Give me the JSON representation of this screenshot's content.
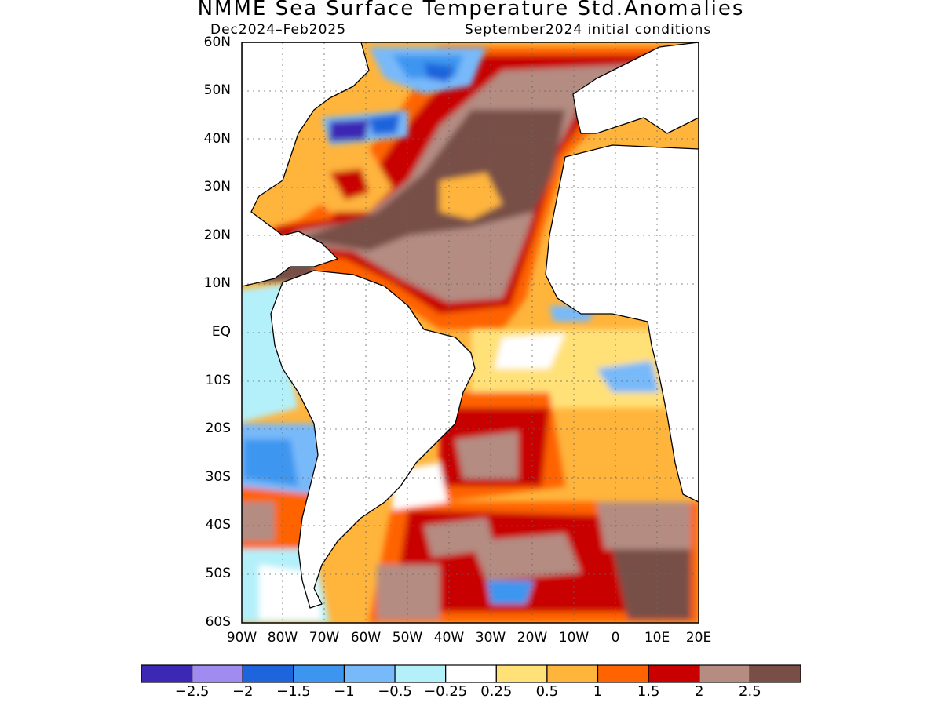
{
  "title": "NMME Sea Surface Temperature Std.Anomalies",
  "period": "Dec2024–Feb2025",
  "initial_conditions": "September2024 initial conditions",
  "lat_labels": [
    "60N",
    "50N",
    "40N",
    "30N",
    "20N",
    "10N",
    "EQ",
    "10S",
    "20S",
    "30S",
    "40S",
    "50S",
    "60S"
  ],
  "lon_labels": [
    "90W",
    "80W",
    "70W",
    "60W",
    "50W",
    "40W",
    "30W",
    "20W",
    "10W",
    "0",
    "10E",
    "20E"
  ],
  "colorbar": {
    "colors": [
      "#3c28b4",
      "#a08cf0",
      "#1e64dc",
      "#3c96f0",
      "#78b9fa",
      "#b4f0fa",
      "#ffffff",
      "#ffe178",
      "#ffb43c",
      "#ff6400",
      "#c80000",
      "#b48c82",
      "#784f46"
    ],
    "labels": [
      "−2.5",
      "−2",
      "−1.5",
      "−1",
      "−0.5",
      "−0.25",
      "0.25",
      "0.5",
      "1",
      "1.5",
      "2",
      "2.5"
    ]
  }
}
